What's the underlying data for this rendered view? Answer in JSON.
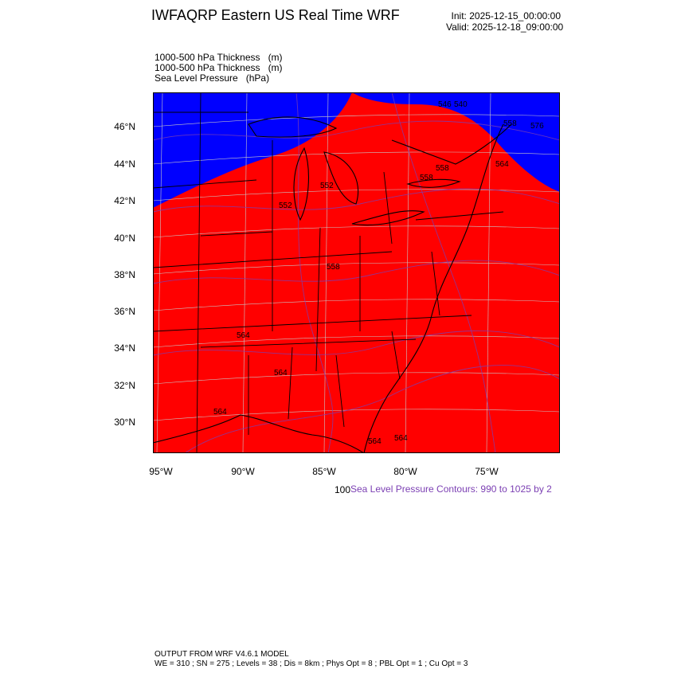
{
  "header": {
    "title": "IWFAQRP Eastern US Real Time WRF",
    "init": "Init: 2025-12-15_00:00:00",
    "valid": "Valid: 2025-12-18_09:00:00"
  },
  "fields": [
    {
      "name": "1000-500 hPa Thickness",
      "unit": "(m)"
    },
    {
      "name": "1000-500 hPa Thickness",
      "unit": "(m)"
    },
    {
      "name": "Sea Level Pressure",
      "unit": "(hPa)"
    }
  ],
  "map": {
    "colors": {
      "cold": "#0000ff",
      "warm": "#ff0000",
      "contour": "#7b3fb3",
      "border": "#000000",
      "grid": "#c8c8c8"
    },
    "lat_ticks": [
      "46°N",
      "44°N",
      "42°N",
      "40°N",
      "38°N",
      "36°N",
      "34°N",
      "32°N",
      "30°N"
    ],
    "lon_ticks": [
      "95°W",
      "90°W",
      "85°W",
      "80°W",
      "75°W"
    ],
    "contour_labels": [
      "546",
      "540",
      "552",
      "552",
      "558",
      "564",
      "564",
      "558",
      "558",
      "564",
      "564",
      "558",
      "564",
      "564",
      "576"
    ]
  },
  "slp_legend": {
    "prefix": "100",
    "text": "Sea Level Pressure Contours: 990 to 1025 by 2"
  },
  "model_info": {
    "line1": "OUTPUT FROM WRF V4.6.1 MODEL",
    "line2": "WE = 310 ; SN = 275 ; Levels = 38 ; Dis = 8km ; Phys Opt = 8 ; PBL Opt = 1 ; Cu Opt = 3"
  }
}
